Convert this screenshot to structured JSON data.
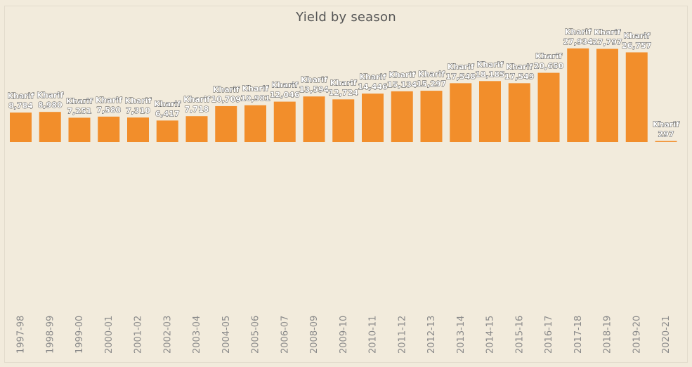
{
  "chart_data": {
    "type": "bar",
    "title": "Yield by season",
    "xlabel": "",
    "ylabel": "",
    "categories": [
      "1997-98",
      "1998-99",
      "1999-00",
      "2000-01",
      "2001-02",
      "2002-03",
      "2003-04",
      "2004-05",
      "2005-06",
      "2006-07",
      "2008-09",
      "2009-10",
      "2010-11",
      "2011-12",
      "2012-13",
      "2013-14",
      "2014-15",
      "2015-16",
      "2016-17",
      "2017-18",
      "2018-19",
      "2019-20",
      "2020-21"
    ],
    "series": [
      {
        "name": "Kharif",
        "values": [
          8784,
          8980,
          7251,
          7580,
          7310,
          6417,
          7718,
          10709,
          10981,
          12046,
          13594,
          12724,
          14446,
          15134,
          15297,
          17548,
          18185,
          17549,
          20650,
          27934,
          27797,
          26757,
          297
        ],
        "value_labels": [
          "8,784",
          "8,980",
          "7,251",
          "7,580",
          "7,310",
          "6,417",
          "7,718",
          "10,709",
          "10,981",
          "12,046",
          "13,594",
          "12,724",
          "14,446",
          "15,134",
          "15,297",
          "17,548",
          "18,185",
          "17,549",
          "20,650",
          "27,934",
          "27,797",
          "26,757",
          "297"
        ]
      }
    ],
    "ylim": [
      0,
      30000
    ],
    "bar_color": "#f28e2b",
    "background_color": "#f2ebdc",
    "grid": false,
    "legend": "none"
  }
}
